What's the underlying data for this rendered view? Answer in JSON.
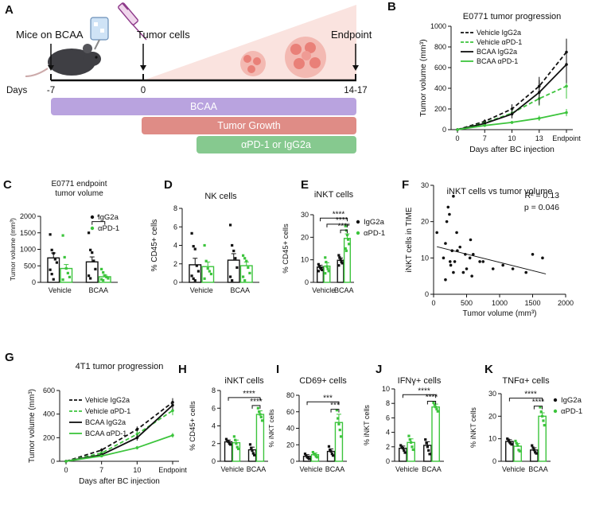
{
  "colors": {
    "black": "#111111",
    "green": "#3cc43c",
    "green_dark": "#1f9a1f",
    "purple": "#b9a3df",
    "red": "#df8c86",
    "teal": "#86c98f",
    "tumor_fill": "#f3b9b2",
    "tumor_cell": "#e98078",
    "bg_triangle": "#fae3df",
    "mouse": "#3f3f44",
    "syringe": "#8e3a8a"
  },
  "panel_a": {
    "letter": "A",
    "mice_label": "Mice on BCAA",
    "tumor_label": "Tumor cells",
    "endpoint_label": "Endpoint",
    "days_label": "Days",
    "day_ticks": [
      "-7",
      "0",
      "14-17"
    ],
    "bars": [
      "BCAA",
      "Tumor Growth",
      "αPD-1 or IgG2a"
    ],
    "icons": [
      "mouse-icon",
      "water-bottle-icon",
      "syringe-icon",
      "tumor-cluster-icon"
    ]
  },
  "chart_data": [
    {
      "panel": "B",
      "type": "line",
      "title": "E0771 tumor progression",
      "xlabel": "Days after BC injection",
      "ylabel": "Tumor volume (mm³)",
      "categories": [
        "0",
        "7",
        "10",
        "13",
        "Endpoint"
      ],
      "ylim": [
        0,
        1000
      ],
      "yticks": [
        0,
        200,
        400,
        600,
        800,
        1000
      ],
      "series": [
        {
          "name": "Vehicle IgG2a",
          "values": [
            0,
            80,
            200,
            420,
            750
          ],
          "errors": [
            5,
            20,
            45,
            90,
            130
          ],
          "color": "black",
          "dashed": true
        },
        {
          "name": "Vehicle αPD-1",
          "values": [
            0,
            65,
            160,
            300,
            420
          ],
          "errors": [
            5,
            15,
            35,
            70,
            120
          ],
          "color": "green",
          "dashed": true
        },
        {
          "name": "BCAA IgG2a",
          "values": [
            0,
            60,
            150,
            360,
            630
          ],
          "errors": [
            5,
            15,
            40,
            120,
            180
          ],
          "color": "black",
          "dashed": false
        },
        {
          "name": "BCAA αPD-1",
          "values": [
            0,
            40,
            70,
            110,
            165
          ],
          "errors": [
            5,
            10,
            15,
            25,
            35
          ],
          "color": "green",
          "dashed": false
        }
      ]
    },
    {
      "panel": "C",
      "type": "bar",
      "title": "E0771 endpoint tumor volume",
      "title_lines": [
        "E0771 endpoint",
        "tumor volume"
      ],
      "ylabel": "Tumor volume (mm³)",
      "categories": [
        "Vehicle",
        "BCAA"
      ],
      "ylim": [
        0,
        2000
      ],
      "yticks": [
        0,
        500,
        1000,
        1500,
        2000
      ],
      "legend": [
        "IgG2a",
        "αPD-1"
      ],
      "series": [
        {
          "name": "IgG2a",
          "values": [
            740,
            620
          ],
          "errors": [
            150,
            150
          ]
        },
        {
          "name": "αPD-1",
          "values": [
            420,
            170
          ],
          "errors": [
            120,
            50
          ]
        }
      ],
      "points": [
        [
          [
            1450,
            980,
            880,
            700,
            600,
            380,
            250,
            90
          ],
          [
            1500,
            980,
            900,
            650,
            400,
            200,
            120
          ]
        ],
        [
          [
            1420,
            760,
            420,
            280,
            160,
            80
          ],
          [
            400,
            300,
            210,
            160,
            120,
            90,
            60
          ]
        ]
      ],
      "significance": [
        {
          "label": "*",
          "level": 1840
        }
      ]
    },
    {
      "panel": "D",
      "type": "bar",
      "title": "NK cells",
      "ylabel": "% CD45+ cells",
      "categories": [
        "Vehicle",
        "BCAA"
      ],
      "ylim": [
        0,
        8
      ],
      "yticks": [
        0,
        2,
        4,
        6,
        8
      ],
      "series": [
        {
          "name": "IgG2a",
          "values": [
            1.9,
            2.4
          ],
          "errors": [
            0.7,
            0.7
          ]
        },
        {
          "name": "αPD-1",
          "values": [
            1.7,
            1.8
          ],
          "errors": [
            0.5,
            0.4
          ]
        }
      ],
      "points": [
        [
          [
            5.3,
            3.9,
            3.6,
            1.8,
            1.2,
            0.7,
            0.4,
            0.2
          ],
          [
            6.2,
            4.0,
            3.4,
            2.6,
            1.6,
            0.6,
            0.2
          ]
        ],
        [
          [
            4.0,
            2.3,
            1.5,
            1.2,
            0.9,
            0.4
          ],
          [
            2.9,
            2.6,
            2.3,
            1.6,
            1.0,
            0.6,
            0.2
          ]
        ]
      ]
    },
    {
      "panel": "E",
      "type": "bar",
      "title": "iNKT cells",
      "ylabel": "% CD45+ cells",
      "categories": [
        "Vehicle",
        "BCAA"
      ],
      "ylim": [
        0,
        30
      ],
      "yticks": [
        0,
        10,
        20,
        30
      ],
      "legend": [
        "IgG2a",
        "αPD-1"
      ],
      "series": [
        {
          "name": "IgG2a",
          "values": [
            6.8,
            9.8
          ],
          "errors": [
            0.8,
            1.0
          ]
        },
        {
          "name": "αPD-1",
          "values": [
            7.2,
            19.5
          ],
          "errors": [
            1.5,
            2.0
          ]
        }
      ],
      "points": [
        [
          [
            8,
            7,
            6.5,
            6,
            5.5,
            5
          ],
          [
            12,
            11,
            10,
            9,
            8.5,
            7.5
          ]
        ],
        [
          [
            11,
            9,
            7,
            6,
            5,
            4
          ],
          [
            25,
            23,
            21,
            19,
            17,
            15,
            14
          ]
        ]
      ],
      "significance": [
        {
          "label": "****",
          "from": 0,
          "to": 3,
          "level": 28.5
        },
        {
          "label": "****",
          "from": 1,
          "to": 3,
          "level": 25.8
        },
        {
          "label": "****",
          "from": 2,
          "to": 3,
          "level": 23.2
        }
      ]
    },
    {
      "panel": "F",
      "type": "scatter",
      "title": "iNKT cells vs tumor volume",
      "xlabel": "Tumor volume (mm³)",
      "ylabel": "iNKT cells in TIME",
      "xlim": [
        0,
        2000
      ],
      "ylim": [
        0,
        30
      ],
      "xticks": [
        0,
        500,
        1000,
        1500,
        2000
      ],
      "yticks": [
        0,
        10,
        20,
        30
      ],
      "annotation": [
        "R² = 0.13",
        "p = 0.046"
      ],
      "fit": {
        "x": [
          50,
          1700
        ],
        "y": [
          13.1,
          5.6
        ]
      },
      "x": [
        50,
        150,
        180,
        200,
        220,
        240,
        250,
        260,
        280,
        300,
        320,
        350,
        360,
        400,
        450,
        480,
        500,
        550,
        560,
        580,
        600,
        700,
        750,
        900,
        1050,
        1200,
        1400,
        1500,
        1650,
        180,
        300
      ],
      "y": [
        17,
        10,
        14,
        20,
        24,
        22,
        9,
        8,
        12,
        27,
        9,
        17,
        12,
        13,
        6,
        11,
        7,
        10,
        15,
        5,
        11,
        9,
        9,
        7,
        8,
        7,
        6,
        11,
        10,
        4,
        6
      ]
    },
    {
      "panel": "G",
      "type": "line",
      "title": "4T1 tumor progression",
      "xlabel": "Days after BC injection",
      "ylabel": "Tumor volume (mm³)",
      "categories": [
        "0",
        "7",
        "10",
        "Endpoint"
      ],
      "ylim": [
        0,
        600
      ],
      "yticks": [
        0,
        200,
        400,
        600
      ],
      "series": [
        {
          "name": "Vehicle IgG2a",
          "values": [
            0,
            95,
            270,
            500
          ],
          "errors": [
            3,
            15,
            25,
            35
          ],
          "color": "black",
          "dashed": true
        },
        {
          "name": "Vehicle αPD-1",
          "values": [
            0,
            70,
            230,
            430
          ],
          "errors": [
            3,
            15,
            25,
            40
          ],
          "color": "green",
          "dashed": true
        },
        {
          "name": "BCAA IgG2a",
          "values": [
            0,
            55,
            200,
            475
          ],
          "errors": [
            3,
            12,
            25,
            35
          ],
          "color": "black",
          "dashed": false
        },
        {
          "name": "BCAA αPD-1",
          "values": [
            0,
            45,
            115,
            220
          ],
          "errors": [
            3,
            10,
            15,
            20
          ],
          "color": "green",
          "dashed": false
        }
      ]
    },
    {
      "panel": "H",
      "type": "bar",
      "title": "iNKT cells",
      "ylabel": "% CD45+ cells",
      "categories": [
        "Vehicle",
        "BCAA"
      ],
      "ylim": [
        0,
        8
      ],
      "yticks": [
        0,
        2,
        4,
        6,
        8
      ],
      "series": [
        {
          "name": "IgG2a",
          "values": [
            2.2,
            1.3
          ],
          "errors": [
            0.2,
            0.3
          ]
        },
        {
          "name": "αPD-1",
          "values": [
            2.1,
            5.3
          ],
          "errors": [
            0.3,
            0.4
          ]
        }
      ],
      "points": [
        [
          [
            2.5,
            2.3,
            2.2,
            2.0,
            1.9
          ],
          [
            1.9,
            1.5,
            1.2,
            0.9,
            0.7
          ]
        ],
        [
          [
            2.8,
            2.4,
            2.0,
            1.6,
            1.4
          ],
          [
            6.0,
            5.6,
            5.3,
            5.0,
            4.6
          ]
        ]
      ],
      "significance": [
        {
          "label": "****",
          "from": 0,
          "to": 3,
          "level": 7.2
        },
        {
          "label": "****",
          "from": 2,
          "to": 3,
          "level": 6.3
        }
      ]
    },
    {
      "panel": "I",
      "type": "bar",
      "title": "CD69+ cells",
      "ylabel": "% iNKT cells",
      "categories": [
        "Vehicle",
        "BCAA"
      ],
      "ylim": [
        0,
        80
      ],
      "yticks": [
        0,
        20,
        40,
        60,
        80
      ],
      "series": [
        {
          "name": "IgG2a",
          "values": [
            6,
            12
          ],
          "errors": [
            2,
            3
          ]
        },
        {
          "name": "αPD-1",
          "values": [
            8,
            47
          ],
          "errors": [
            2,
            10
          ]
        }
      ],
      "points": [
        [
          [
            9,
            7,
            5,
            4,
            3
          ],
          [
            18,
            14,
            12,
            9,
            7
          ]
        ],
        [
          [
            11,
            9,
            8,
            6,
            5
          ],
          [
            62,
            52,
            45,
            38,
            30
          ]
        ]
      ],
      "significance": [
        {
          "label": "***",
          "from": 0,
          "to": 3,
          "level": 72
        },
        {
          "label": "***",
          "from": 2,
          "to": 3,
          "level": 63
        }
      ]
    },
    {
      "panel": "J",
      "type": "bar",
      "title": "IFNγ+ cells",
      "ylabel": "% iNKT cells",
      "categories": [
        "Vehicle",
        "BCAA"
      ],
      "ylim": [
        0,
        10
      ],
      "yticks": [
        0,
        2,
        4,
        6,
        8,
        10
      ],
      "series": [
        {
          "name": "IgG2a",
          "values": [
            1.8,
            2.2
          ],
          "errors": [
            0.3,
            0.5
          ]
        },
        {
          "name": "αPD-1",
          "values": [
            2.6,
            7.5
          ],
          "errors": [
            0.5,
            0.4
          ]
        }
      ],
      "points": [
        [
          [
            2.2,
            2.0,
            1.8,
            1.5,
            1.2
          ],
          [
            3.0,
            2.5,
            2.0,
            1.5,
            1.0
          ]
        ],
        [
          [
            3.5,
            3.0,
            2.6,
            2.0,
            1.6
          ],
          [
            8.1,
            7.8,
            7.5,
            7.2,
            6.9
          ]
        ]
      ],
      "significance": [
        {
          "label": "****",
          "from": 0,
          "to": 3,
          "level": 9.2
        },
        {
          "label": "****",
          "from": 2,
          "to": 3,
          "level": 8.3
        }
      ]
    },
    {
      "panel": "K",
      "type": "bar",
      "title": "TNFα+ cells",
      "ylabel": "% iNKT cells",
      "categories": [
        "Vehicle",
        "BCAA"
      ],
      "ylim": [
        0,
        30
      ],
      "yticks": [
        0,
        10,
        20,
        30
      ],
      "legend": [
        "IgG2a",
        "αPD-1"
      ],
      "series": [
        {
          "name": "IgG2a",
          "values": [
            8.8,
            5
          ],
          "errors": [
            0.8,
            1
          ]
        },
        {
          "name": "αPD-1",
          "values": [
            6.7,
            20
          ],
          "errors": [
            1.2,
            1.5
          ]
        }
      ],
      "points": [
        [
          [
            10,
            9.5,
            8.5,
            8,
            7.5
          ],
          [
            7,
            6,
            5,
            4,
            3.5
          ]
        ],
        [
          [
            9,
            8,
            7,
            5,
            4.5
          ],
          [
            24,
            22,
            20,
            18,
            16
          ]
        ]
      ],
      "significance": [
        {
          "label": "****",
          "from": 0,
          "to": 3,
          "level": 28
        },
        {
          "label": "****",
          "from": 2,
          "to": 3,
          "level": 24.5
        }
      ]
    }
  ]
}
